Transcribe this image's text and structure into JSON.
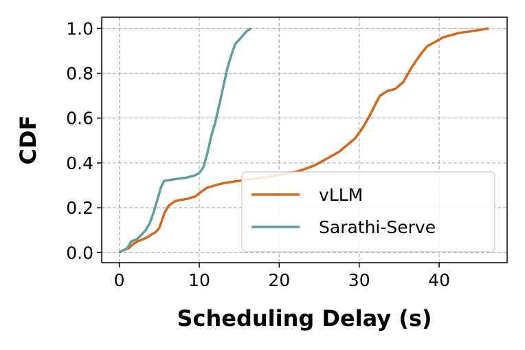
{
  "chart_data": {
    "type": "line",
    "xlabel": "Scheduling Delay (s)",
    "ylabel": "CDF",
    "xlim": [
      -2.2,
      48.5
    ],
    "ylim": [
      -0.045,
      1.05
    ],
    "xticks": [
      0,
      10,
      20,
      30,
      40
    ],
    "yticks": [
      0.0,
      0.2,
      0.4,
      0.6,
      0.8,
      1.0
    ],
    "xtick_labels": [
      "0",
      "10",
      "20",
      "30",
      "40"
    ],
    "ytick_labels": [
      "0.0",
      "0.2",
      "0.4",
      "0.6",
      "0.8",
      "1.0"
    ],
    "grid": true,
    "legend_position": "lower-right",
    "series": [
      {
        "name": "vLLM",
        "color": "#D2691E",
        "points": [
          [
            0,
            0.0
          ],
          [
            0.5,
            0.01
          ],
          [
            1.2,
            0.02
          ],
          [
            1.8,
            0.04
          ],
          [
            2.3,
            0.05
          ],
          [
            3.0,
            0.06
          ],
          [
            3.6,
            0.07
          ],
          [
            4.0,
            0.08
          ],
          [
            4.5,
            0.09
          ],
          [
            5.0,
            0.11
          ],
          [
            5.3,
            0.14
          ],
          [
            5.7,
            0.18
          ],
          [
            6.2,
            0.21
          ],
          [
            7.0,
            0.23
          ],
          [
            8.5,
            0.24
          ],
          [
            9.5,
            0.25
          ],
          [
            10.2,
            0.27
          ],
          [
            11.0,
            0.29
          ],
          [
            12.0,
            0.3
          ],
          [
            13.0,
            0.31
          ],
          [
            15.0,
            0.32
          ],
          [
            17.0,
            0.33
          ],
          [
            19.0,
            0.34
          ],
          [
            20.5,
            0.35
          ],
          [
            22.0,
            0.36
          ],
          [
            23.0,
            0.37
          ],
          [
            24.5,
            0.39
          ],
          [
            25.5,
            0.41
          ],
          [
            26.5,
            0.43
          ],
          [
            27.5,
            0.45
          ],
          [
            28.5,
            0.48
          ],
          [
            29.5,
            0.51
          ],
          [
            30.5,
            0.56
          ],
          [
            31.3,
            0.61
          ],
          [
            32.0,
            0.66
          ],
          [
            32.6,
            0.7
          ],
          [
            33.5,
            0.72
          ],
          [
            34.5,
            0.73
          ],
          [
            35.5,
            0.76
          ],
          [
            36.3,
            0.81
          ],
          [
            37.0,
            0.85
          ],
          [
            37.8,
            0.89
          ],
          [
            38.5,
            0.92
          ],
          [
            39.5,
            0.94
          ],
          [
            40.5,
            0.96
          ],
          [
            42.5,
            0.98
          ],
          [
            44.5,
            0.99
          ],
          [
            46.2,
            1.0
          ]
        ]
      },
      {
        "name": "Sarathi-Serve",
        "color": "#5F9EA0",
        "points": [
          [
            0,
            0.0
          ],
          [
            0.5,
            0.01
          ],
          [
            1.0,
            0.02
          ],
          [
            1.5,
            0.05
          ],
          [
            2.2,
            0.06
          ],
          [
            2.8,
            0.08
          ],
          [
            3.3,
            0.1
          ],
          [
            3.8,
            0.13
          ],
          [
            4.3,
            0.18
          ],
          [
            4.8,
            0.24
          ],
          [
            5.2,
            0.29
          ],
          [
            5.6,
            0.32
          ],
          [
            6.5,
            0.325
          ],
          [
            7.5,
            0.33
          ],
          [
            8.5,
            0.335
          ],
          [
            9.5,
            0.345
          ],
          [
            10.0,
            0.355
          ],
          [
            10.5,
            0.38
          ],
          [
            11.0,
            0.44
          ],
          [
            11.5,
            0.52
          ],
          [
            12.0,
            0.58
          ],
          [
            12.5,
            0.66
          ],
          [
            13.0,
            0.74
          ],
          [
            13.5,
            0.82
          ],
          [
            14.0,
            0.88
          ],
          [
            14.5,
            0.93
          ],
          [
            15.0,
            0.95
          ],
          [
            15.5,
            0.97
          ],
          [
            16.0,
            0.99
          ],
          [
            16.5,
            1.0
          ]
        ]
      }
    ]
  }
}
